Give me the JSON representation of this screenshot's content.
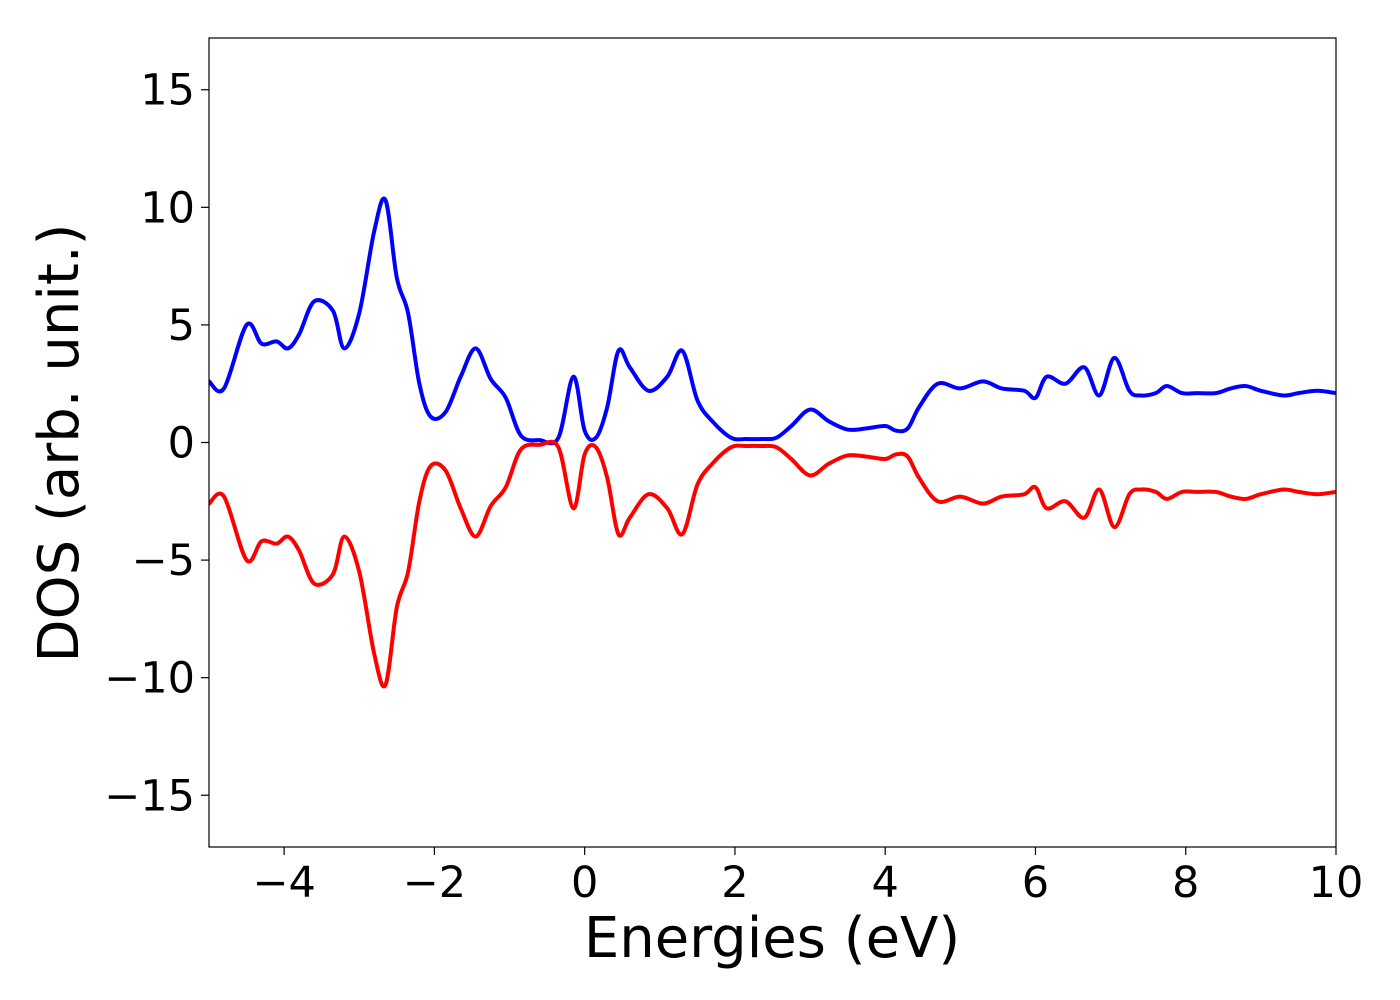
{
  "chart_data": {
    "type": "line",
    "title": "",
    "xlabel": "Energies (eV)",
    "ylabel": "DOS (arb. unit.)",
    "xlim": [
      -5,
      10
    ],
    "ylim": [
      -17.2,
      17.2
    ],
    "xticks": [
      -4,
      -2,
      0,
      2,
      4,
      6,
      8,
      10
    ],
    "xtick_labels": [
      "−4",
      "−2",
      "0",
      "2",
      "4",
      "6",
      "8",
      "10"
    ],
    "yticks": [
      15,
      10,
      5,
      0,
      -5,
      -10,
      -15
    ],
    "ytick_labels": [
      "15",
      "10",
      "5",
      "0",
      "−5",
      "−10",
      "−15"
    ],
    "grid": false,
    "legend": "none",
    "x": [
      -5.0,
      -4.8,
      -4.5,
      -4.3,
      -4.1,
      -3.95,
      -3.8,
      -3.6,
      -3.35,
      -3.2,
      -3.0,
      -2.8,
      -2.65,
      -2.5,
      -2.35,
      -2.2,
      -2.05,
      -1.85,
      -1.65,
      -1.45,
      -1.25,
      -1.05,
      -0.85,
      -0.6,
      -0.35,
      -0.15,
      0.0,
      0.15,
      0.3,
      0.45,
      0.6,
      0.85,
      1.1,
      1.3,
      1.5,
      1.7,
      1.95,
      2.15,
      2.35,
      2.55,
      2.75,
      3.0,
      3.25,
      3.5,
      3.75,
      4.0,
      4.15,
      4.3,
      4.45,
      4.7,
      5.0,
      5.3,
      5.55,
      5.85,
      6.0,
      6.15,
      6.4,
      6.65,
      6.85,
      7.05,
      7.25,
      7.4,
      7.6,
      7.75,
      7.95,
      8.15,
      8.4,
      8.6,
      8.8,
      9.0,
      9.3,
      9.5,
      9.75,
      10.0
    ],
    "series": [
      {
        "color": "#0000ff",
        "values": [
          2.6,
          2.3,
          5.0,
          4.2,
          4.3,
          4.0,
          4.6,
          6.0,
          5.6,
          4.0,
          5.5,
          9.0,
          10.3,
          7.0,
          5.5,
          2.5,
          1.1,
          1.3,
          2.8,
          4.0,
          2.7,
          1.9,
          0.3,
          0.1,
          0.2,
          2.8,
          0.5,
          0.2,
          1.5,
          3.9,
          3.2,
          2.2,
          2.8,
          3.9,
          1.8,
          0.9,
          0.2,
          0.15,
          0.15,
          0.2,
          0.7,
          1.4,
          0.9,
          0.55,
          0.6,
          0.7,
          0.5,
          0.6,
          1.5,
          2.5,
          2.3,
          2.6,
          2.3,
          2.2,
          1.9,
          2.8,
          2.5,
          3.2,
          2.0,
          3.6,
          2.2,
          2.0,
          2.1,
          2.4,
          2.1,
          2.1,
          2.1,
          2.3,
          2.4,
          2.2,
          2.0,
          2.1,
          2.2,
          2.1
        ]
      },
      {
        "color": "#ff0000",
        "values": [
          -2.6,
          -2.3,
          -5.0,
          -4.2,
          -4.3,
          -4.0,
          -4.6,
          -6.0,
          -5.6,
          -4.0,
          -5.5,
          -9.0,
          -10.3,
          -7.0,
          -5.5,
          -2.5,
          -1.0,
          -1.2,
          -2.8,
          -4.0,
          -2.7,
          -1.9,
          -0.3,
          -0.1,
          -0.2,
          -2.8,
          -0.5,
          -0.2,
          -1.5,
          -3.9,
          -3.2,
          -2.2,
          -2.8,
          -3.9,
          -1.8,
          -0.9,
          -0.2,
          -0.15,
          -0.15,
          -0.2,
          -0.7,
          -1.4,
          -0.9,
          -0.55,
          -0.6,
          -0.7,
          -0.5,
          -0.6,
          -1.5,
          -2.5,
          -2.3,
          -2.6,
          -2.3,
          -2.2,
          -1.9,
          -2.8,
          -2.5,
          -3.2,
          -2.0,
          -3.6,
          -2.2,
          -2.0,
          -2.1,
          -2.4,
          -2.1,
          -2.1,
          -2.1,
          -2.3,
          -2.4,
          -2.2,
          -2.0,
          -2.1,
          -2.2,
          -2.1
        ]
      }
    ]
  }
}
